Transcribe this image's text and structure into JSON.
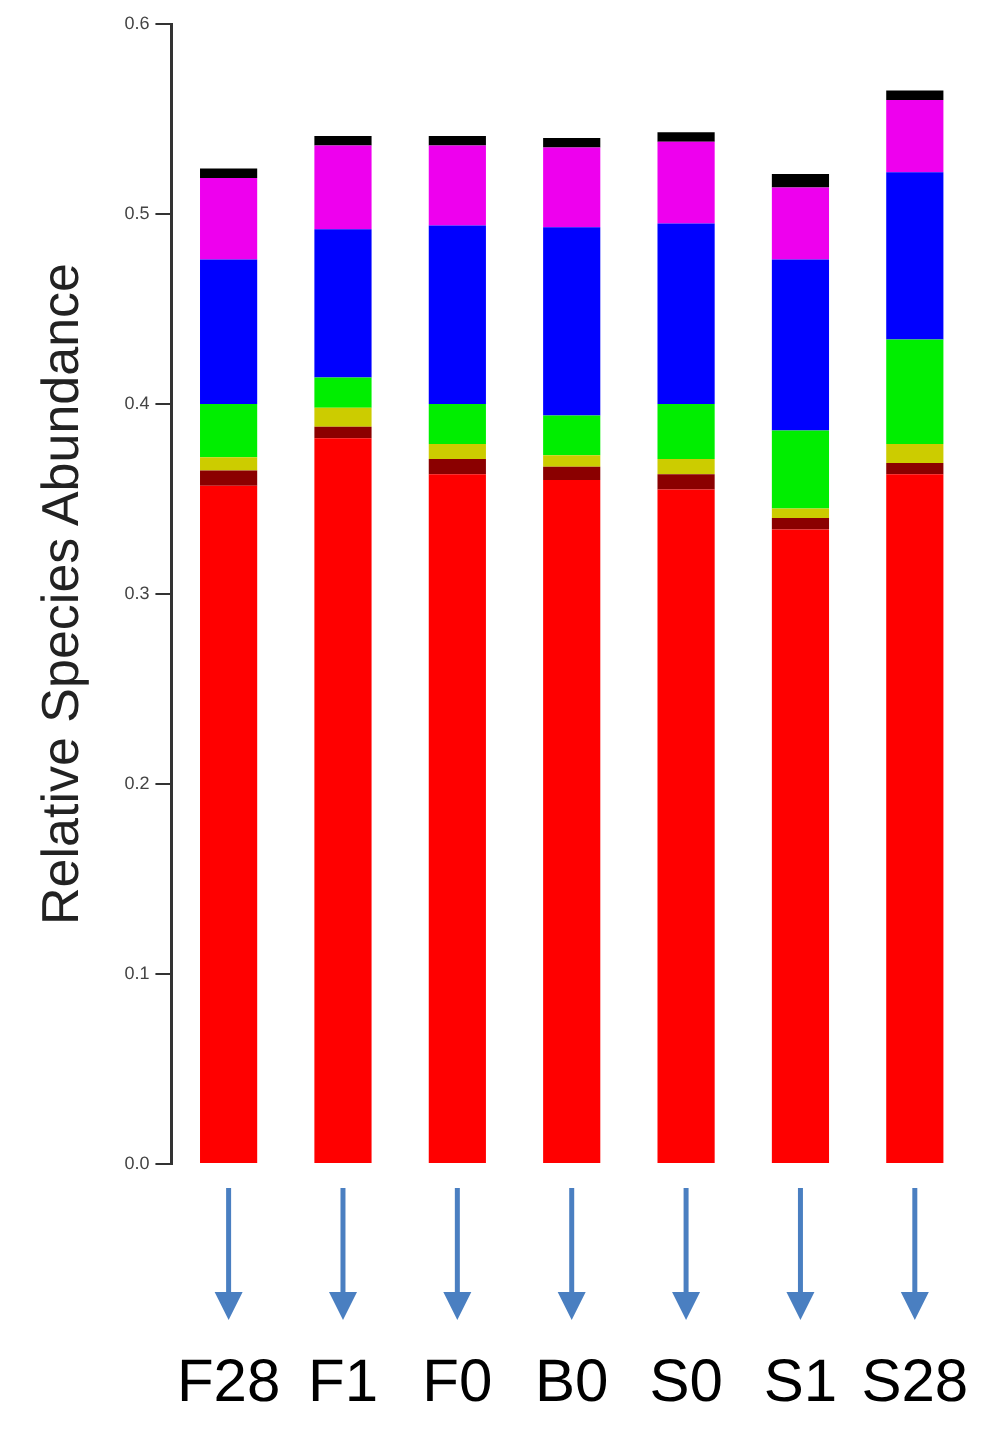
{
  "chart_data": {
    "type": "bar",
    "stacked": true,
    "ylabel": "Relative Species Abundance",
    "categories": [
      "F28",
      "F1",
      "F0",
      "B0",
      "S0",
      "S1",
      "S28"
    ],
    "ylim": [
      0,
      0.6
    ],
    "yticks": [
      {
        "value": 0,
        "label": "0.0"
      },
      {
        "value": 0.1,
        "label": "0.1"
      },
      {
        "value": 0.2,
        "label": "0.2"
      },
      {
        "value": 0.3,
        "label": "0.3"
      },
      {
        "value": 0.4,
        "label": "0.4"
      },
      {
        "value": 0.5,
        "label": "0.5"
      },
      {
        "value": 0.6,
        "label": "0.6"
      }
    ],
    "grid": false,
    "legend": false,
    "series": [
      {
        "color": "#ff0000",
        "values": [
          0.357,
          0.382,
          0.363,
          0.36,
          0.355,
          0.334,
          0.363
        ]
      },
      {
        "color": "#8b0000",
        "values": [
          0.008,
          0.006,
          0.008,
          0.007,
          0.008,
          0.006,
          0.006
        ]
      },
      {
        "color": "#cccc00",
        "values": [
          0.007,
          0.01,
          0.008,
          0.006,
          0.008,
          0.005,
          0.01
        ]
      },
      {
        "color": "#00ee00",
        "values": [
          0.028,
          0.016,
          0.021,
          0.021,
          0.029,
          0.041,
          0.055
        ]
      },
      {
        "color": "#0000ff",
        "values": [
          0.076,
          0.078,
          0.094,
          0.099,
          0.095,
          0.09,
          0.088
        ]
      },
      {
        "color": "#ee00ee",
        "values": [
          0.043,
          0.044,
          0.042,
          0.042,
          0.043,
          0.038,
          0.038
        ]
      },
      {
        "color": "#000000",
        "values": [
          0.005,
          0.005,
          0.005,
          0.005,
          0.005,
          0.007,
          0.005
        ]
      }
    ]
  }
}
